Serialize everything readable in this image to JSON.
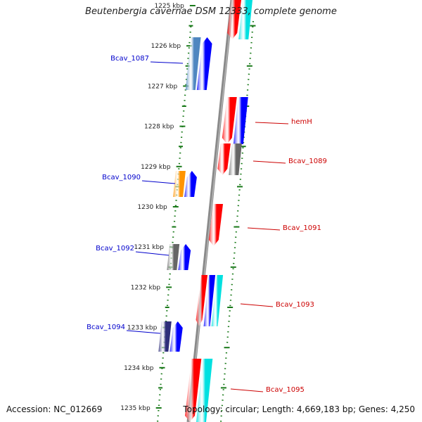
{
  "title": "Beutenbergia cavernae DSM 12333, complete genome",
  "footer": {
    "accession": "Accession: NC_012669",
    "topology": "Topology: circular; Length: 4,669,183 bp; Genes: 4,250"
  },
  "colors": {
    "backbone": "#8a8a8a",
    "tick_green": "#1a7a1a",
    "label_forward": "#0000cc",
    "label_reverse": "#cc0000",
    "gene_blue": "#0000ff",
    "gene_red": "#ff0000",
    "gene_steel": "#4f86c0",
    "gene_orange": "#ff9400",
    "gene_gray": "#666666",
    "gene_indigo": "#2e2e7a",
    "gene_cyan": "#00e0e0"
  },
  "scale_labels": [
    "1225 kbp",
    "1226 kbp",
    "1227 kbp",
    "1228 kbp",
    "1229 kbp",
    "1230 kbp",
    "1231 kbp",
    "1232 kbp",
    "1233 kbp",
    "1234 kbp",
    "1235 kbp"
  ],
  "features": [
    {
      "name": "Bcav_1087",
      "strand": "forward",
      "blocks": [
        "gene_steel",
        "gene_blue"
      ]
    },
    {
      "name": "hemH",
      "strand": "reverse",
      "blocks": [
        "gene_red",
        "gene_blue"
      ]
    },
    {
      "name": "Bcav_1089",
      "strand": "reverse",
      "blocks": [
        "gene_red",
        "gene_gray"
      ]
    },
    {
      "name": "Bcav_1090",
      "strand": "forward",
      "blocks": [
        "gene_orange",
        "gene_blue"
      ]
    },
    {
      "name": "Bcav_1091",
      "strand": "reverse",
      "blocks": [
        "gene_red"
      ]
    },
    {
      "name": "Bcav_1092",
      "strand": "forward",
      "blocks": [
        "gene_gray",
        "gene_blue"
      ]
    },
    {
      "name": "Bcav_1093",
      "strand": "reverse",
      "blocks": [
        "gene_red",
        "gene_blue",
        "gene_cyan"
      ]
    },
    {
      "name": "Bcav_1094",
      "strand": "forward",
      "blocks": [
        "gene_indigo",
        "gene_blue"
      ]
    },
    {
      "name": "Bcav_1095",
      "strand": "reverse",
      "blocks": [
        "gene_red",
        "gene_cyan"
      ]
    }
  ]
}
